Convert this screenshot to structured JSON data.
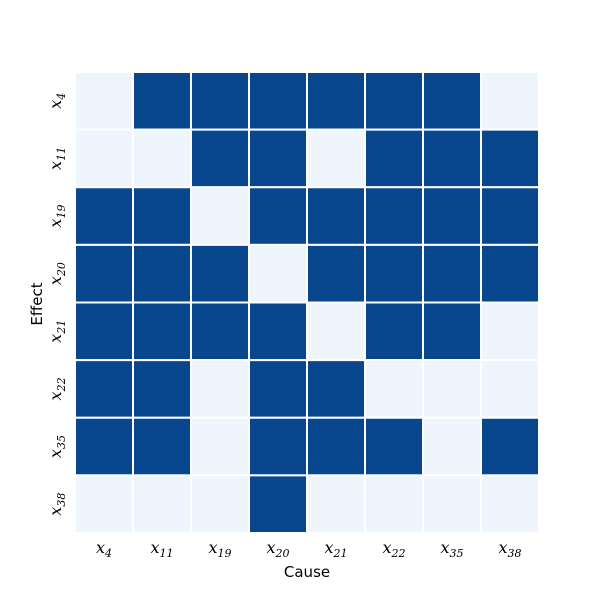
{
  "chart_data": {
    "type": "heatmap",
    "xlabel": "Cause",
    "ylabel": "Effect",
    "x_categories": [
      {
        "base": "x",
        "sub": "4"
      },
      {
        "base": "x",
        "sub": "11"
      },
      {
        "base": "x",
        "sub": "19"
      },
      {
        "base": "x",
        "sub": "20"
      },
      {
        "base": "x",
        "sub": "21"
      },
      {
        "base": "x",
        "sub": "22"
      },
      {
        "base": "x",
        "sub": "35"
      },
      {
        "base": "x",
        "sub": "38"
      }
    ],
    "y_categories": [
      {
        "base": "x",
        "sub": "4"
      },
      {
        "base": "x",
        "sub": "11"
      },
      {
        "base": "x",
        "sub": "19"
      },
      {
        "base": "x",
        "sub": "20"
      },
      {
        "base": "x",
        "sub": "21"
      },
      {
        "base": "x",
        "sub": "22"
      },
      {
        "base": "x",
        "sub": "35"
      },
      {
        "base": "x",
        "sub": "38"
      }
    ],
    "values": [
      [
        0,
        1,
        1,
        1,
        1,
        1,
        1,
        0
      ],
      [
        0,
        0,
        1,
        1,
        0,
        1,
        1,
        1
      ],
      [
        1,
        1,
        0,
        1,
        1,
        1,
        1,
        1
      ],
      [
        1,
        1,
        1,
        0,
        1,
        1,
        1,
        1
      ],
      [
        1,
        1,
        1,
        1,
        0,
        1,
        1,
        0
      ],
      [
        1,
        1,
        0,
        1,
        1,
        0,
        0,
        0
      ],
      [
        1,
        1,
        0,
        1,
        1,
        1,
        0,
        1
      ],
      [
        0,
        0,
        0,
        1,
        0,
        0,
        0,
        0
      ]
    ],
    "colors": {
      "high": "#08478d",
      "low": "#eef5fc",
      "cell_border": "#ffffff"
    },
    "legend": "none",
    "grid": false
  }
}
